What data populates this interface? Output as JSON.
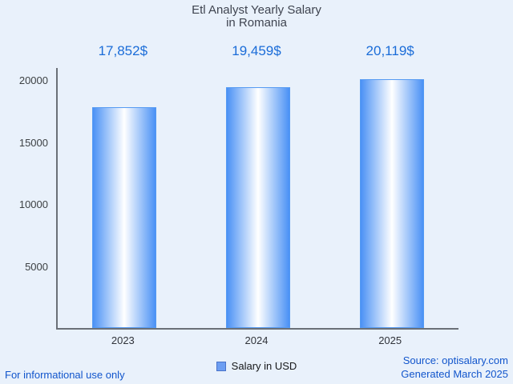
{
  "title": {
    "line1": "Etl Analyst Yearly Salary",
    "line2": "in Romania"
  },
  "legend": {
    "label": "Salary in USD"
  },
  "footer": {
    "left": "For informational use only",
    "source": "Source: optisalary.com",
    "generated": "Generated March 2025"
  },
  "chart_data": {
    "type": "bar",
    "title": "Etl Analyst Yearly Salary in Romania",
    "categories": [
      "2023",
      "2024",
      "2025"
    ],
    "values": [
      17852,
      19459,
      20119
    ],
    "value_labels": [
      "17,852$",
      "19,459$",
      "20,119$"
    ],
    "series_name": "Salary in USD",
    "xlabel": "",
    "ylabel": "",
    "ylim": [
      0,
      21000
    ],
    "yticks": [
      5000,
      10000,
      15000,
      20000
    ],
    "grid": false,
    "legend_position": "bottom",
    "colors": {
      "bar_edge": "#4a91f5",
      "bar_center": "#ffffff",
      "value_label": "#1a6cd8",
      "background": "#e9f1fb",
      "axis": "#6b7077",
      "footer_link": "#1155cc"
    }
  }
}
